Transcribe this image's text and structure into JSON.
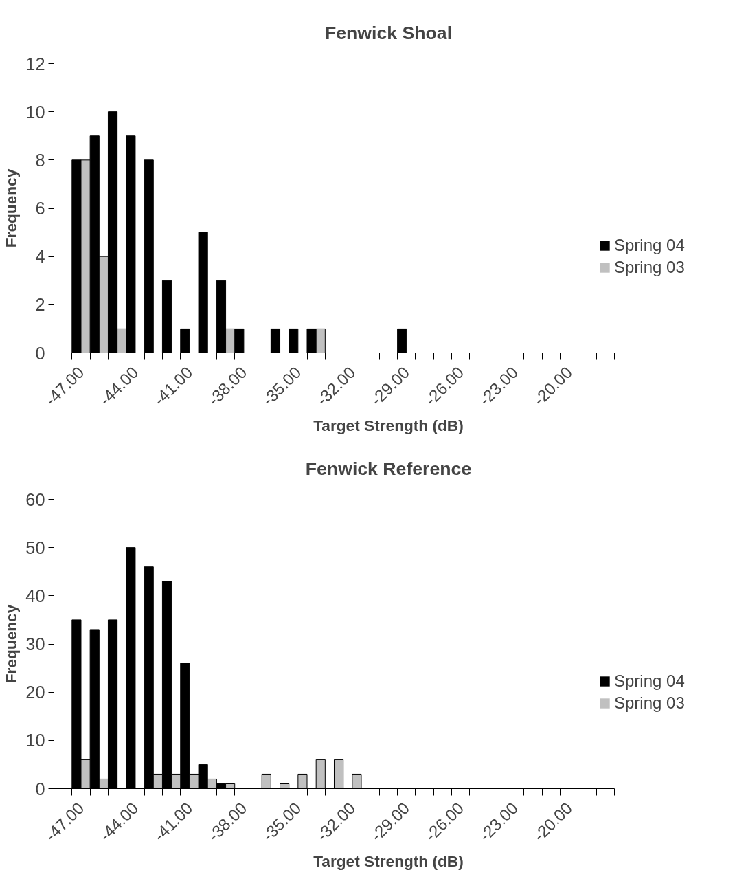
{
  "chart_data": [
    {
      "type": "bar",
      "title": "Fenwick Shoal",
      "xlabel": "Target Strength (dB)",
      "ylabel": "Frequency",
      "categories": [
        null,
        "-47.00",
        null,
        null,
        "-44.00",
        null,
        null,
        "-41.00",
        null,
        null,
        "-38.00",
        null,
        null,
        "-35.00",
        null,
        null,
        "-32.00",
        null,
        null,
        "-29.00",
        null,
        null,
        "-26.00",
        null,
        null,
        "-23.00",
        null,
        null,
        "-20.00",
        null,
        null
      ],
      "series": [
        {
          "name": "Spring 04",
          "color": "#000000",
          "values": [
            0,
            8,
            9,
            10,
            9,
            8,
            3,
            1,
            5,
            3,
            1,
            0,
            1,
            1,
            1,
            0,
            0,
            0,
            0,
            1,
            0,
            0,
            0,
            0,
            0,
            0,
            0,
            0,
            0,
            0,
            0
          ]
        },
        {
          "name": "Spring 03",
          "color": "#c0c0c0",
          "values": [
            0,
            8,
            4,
            1,
            0,
            0,
            0,
            0,
            0,
            1,
            0,
            0,
            0,
            0,
            1,
            0,
            0,
            0,
            0,
            0,
            0,
            0,
            0,
            0,
            0,
            0,
            0,
            0,
            0,
            0,
            0
          ]
        }
      ],
      "ylim": [
        0,
        12
      ],
      "yticks": [
        0,
        2,
        4,
        6,
        8,
        10,
        12
      ],
      "grid": false,
      "legend": "right"
    },
    {
      "type": "bar",
      "title": "Fenwick Reference",
      "xlabel": "Target Strength (dB)",
      "ylabel": "Frequency",
      "categories": [
        null,
        "-47.00",
        null,
        null,
        "-44.00",
        null,
        null,
        "-41.00",
        null,
        null,
        "-38.00",
        null,
        null,
        "-35.00",
        null,
        null,
        "-32.00",
        null,
        null,
        "-29.00",
        null,
        null,
        "-26.00",
        null,
        null,
        "-23.00",
        null,
        null,
        "-20.00",
        null,
        null
      ],
      "series": [
        {
          "name": "Spring 04",
          "color": "#000000",
          "values": [
            0,
            35,
            33,
            35,
            50,
            46,
            43,
            26,
            5,
            1,
            0,
            0,
            0,
            0,
            0,
            0,
            0,
            0,
            0,
            0,
            0,
            0,
            0,
            0,
            0,
            0,
            0,
            0,
            0,
            0,
            0
          ]
        },
        {
          "name": "Spring 03",
          "color": "#c0c0c0",
          "values": [
            0,
            6,
            2,
            0,
            0,
            3,
            3,
            3,
            2,
            1,
            0,
            3,
            1,
            3,
            6,
            6,
            3,
            0,
            0,
            0,
            0,
            0,
            0,
            0,
            0,
            0,
            0,
            0,
            0,
            0,
            0
          ]
        }
      ],
      "ylim": [
        0,
        60
      ],
      "yticks": [
        0,
        10,
        20,
        30,
        40,
        50,
        60
      ],
      "grid": false,
      "legend": "right"
    }
  ]
}
